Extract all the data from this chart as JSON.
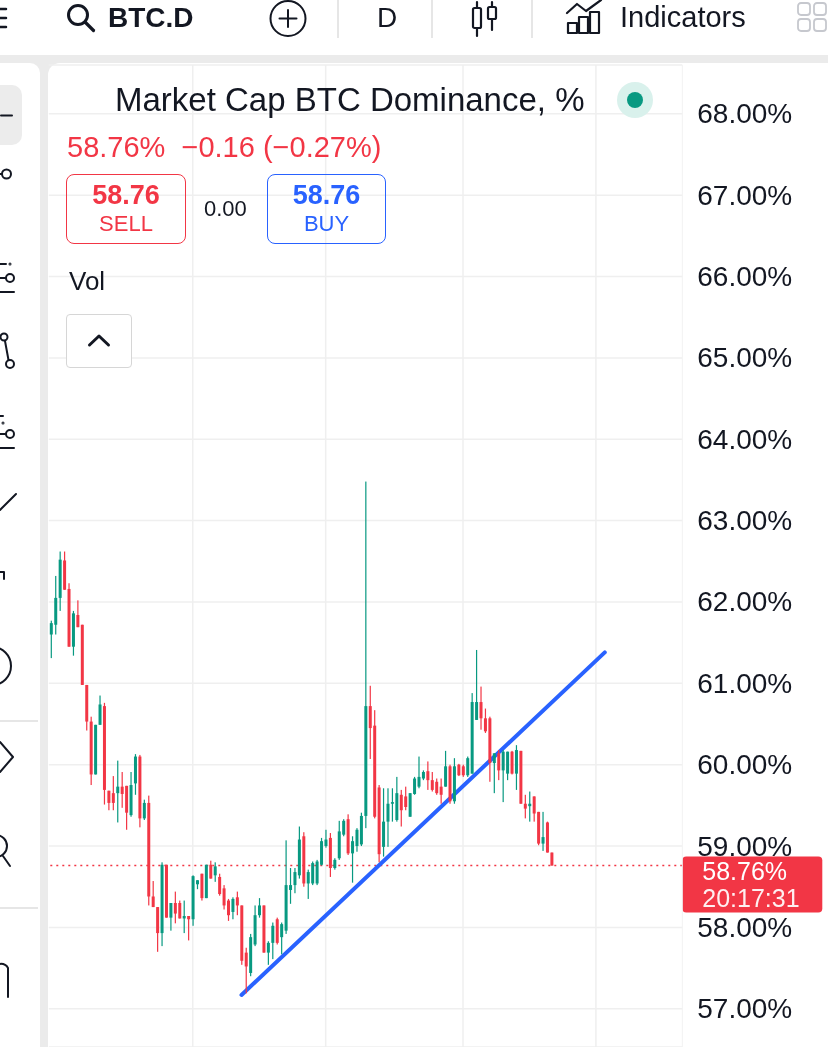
{
  "chart_data": {
    "type": "candlestick",
    "title": "Market Cap BTC Dominance, %",
    "subtitle": "58.76%  −0.16 (−0.27%)",
    "annotations": [
      "BTC.D",
      "D",
      "Indicators",
      "58.76",
      "SELL",
      "0.00",
      "58.76",
      "BUY",
      "Vol",
      "20:17:31"
    ],
    "categories": [
      null,
      null,
      null,
      null,
      null,
      null,
      null,
      null,
      null,
      null,
      null,
      null,
      null,
      null,
      null,
      null,
      null,
      null,
      null,
      null,
      null,
      null,
      null,
      null,
      null,
      null,
      null,
      null,
      null,
      null,
      null,
      null,
      null,
      null,
      null,
      null,
      null,
      null,
      null,
      null,
      null,
      null,
      null,
      null,
      null,
      null,
      null,
      null,
      null,
      null,
      null,
      null,
      null,
      null,
      null,
      null,
      null,
      null,
      null,
      null,
      null,
      null,
      null,
      null,
      null,
      null,
      null,
      null,
      null,
      null,
      null,
      null,
      null,
      null,
      null,
      null,
      null,
      null,
      null,
      null,
      null,
      null,
      null,
      null,
      null,
      null,
      null,
      null,
      null,
      null,
      null,
      null,
      null,
      null,
      null,
      null,
      null,
      null,
      null,
      null,
      null,
      null,
      null,
      null,
      null,
      null,
      null,
      null,
      null,
      null,
      null,
      null,
      null,
      null,
      null,
      null,
      null,
      null,
      null,
      null,
      null,
      null,
      null,
      null,
      null,
      null,
      null,
      null,
      null,
      null,
      null,
      null,
      null,
      null,
      null,
      null,
      null,
      null,
      null,
      null,
      null,
      null,
      null
    ],
    "series": [
      {
        "type": "candlestick",
        "ohlc": [
          [
            61.6,
            61.77,
            61.31,
            61.74
          ],
          [
            61.72,
            62.32,
            61.6,
            62.05
          ],
          [
            62.05,
            62.62,
            61.89,
            62.52
          ],
          [
            62.51,
            62.62,
            62.15,
            62.15
          ],
          [
            62.16,
            62.23,
            61.45,
            61.45
          ],
          [
            61.45,
            61.89,
            61.34,
            61.86
          ],
          [
            61.84,
            62.02,
            61.69,
            61.69
          ],
          [
            61.72,
            61.72,
            60.98,
            60.98
          ],
          [
            60.98,
            60.98,
            60.42,
            60.53
          ],
          [
            60.53,
            60.59,
            59.75,
            59.88
          ],
          [
            59.88,
            60.49,
            59.88,
            60.49
          ],
          [
            60.49,
            60.85,
            60.49,
            60.74
          ],
          [
            60.72,
            60.76,
            59.51,
            59.69
          ],
          [
            59.68,
            59.68,
            59.44,
            59.53
          ],
          [
            59.65,
            59.86,
            59.44,
            59.53
          ],
          [
            59.65,
            60.05,
            59.29,
            59.73
          ],
          [
            59.73,
            59.91,
            59.47,
            59.64
          ],
          [
            59.74,
            59.74,
            59.2,
            59.41
          ],
          [
            59.38,
            59.91,
            59.36,
            59.75
          ],
          [
            59.77,
            60.13,
            59.63,
            60.1
          ],
          [
            60.1,
            60.12,
            59.23,
            59.34
          ],
          [
            59.34,
            59.57,
            59.32,
            59.53
          ],
          [
            59.53,
            59.62,
            58.27,
            58.38
          ],
          [
            58.38,
            58.57,
            58.25,
            58.25
          ],
          [
            58.25,
            58.25,
            57.7,
            57.93
          ],
          [
            57.93,
            58.8,
            57.77,
            58.77
          ],
          [
            58.77,
            58.77,
            58.12,
            58.12
          ],
          [
            58.12,
            58.3,
            57.96,
            58.3
          ],
          [
            58.3,
            58.44,
            58.05,
            58.17
          ],
          [
            58.3,
            58.33,
            58.11,
            58.11
          ],
          [
            58.11,
            58.33,
            57.93,
            58.14
          ],
          [
            58.14,
            58.14,
            57.84,
            58.1
          ],
          [
            58.1,
            58.64,
            58.02,
            58.63
          ],
          [
            58.53,
            58.58,
            58.47,
            58.58
          ],
          [
            58.66,
            58.66,
            58.33,
            58.36
          ],
          [
            58.36,
            58.77,
            58.36,
            58.77
          ],
          [
            58.77,
            58.82,
            58.6,
            58.6
          ],
          [
            58.64,
            58.8,
            58.56,
            58.75
          ],
          [
            58.62,
            58.66,
            58.39,
            58.41
          ],
          [
            58.48,
            58.52,
            58.22,
            58.27
          ],
          [
            58.33,
            58.35,
            58.08,
            58.15
          ],
          [
            58.19,
            58.37,
            58.1,
            58.35
          ],
          [
            58.37,
            58.44,
            58.15,
            58.27
          ],
          [
            58.27,
            58.27,
            57.54,
            57.59
          ],
          [
            57.69,
            57.75,
            57.19,
            57.52
          ],
          [
            57.44,
            57.92,
            57.4,
            57.88
          ],
          [
            57.79,
            58.27,
            57.77,
            58.15
          ],
          [
            58.15,
            58.36,
            58.12,
            58.27
          ],
          [
            58.27,
            58.27,
            57.69,
            57.69
          ],
          [
            57.69,
            57.83,
            57.54,
            57.81
          ],
          [
            57.81,
            58.06,
            57.61,
            58.02
          ],
          [
            58.1,
            58.12,
            57.79,
            57.81
          ],
          [
            57.88,
            58.06,
            57.67,
            58.04
          ],
          [
            57.96,
            59.07,
            57.92,
            58.52
          ],
          [
            58.46,
            58.73,
            58.29,
            58.52
          ],
          [
            58.52,
            58.73,
            58.42,
            58.68
          ],
          [
            58.64,
            59.24,
            58.6,
            59.08
          ],
          [
            59.12,
            59.17,
            58.5,
            58.54
          ],
          [
            58.54,
            58.71,
            58.35,
            58.68
          ],
          [
            58.54,
            58.81,
            58.52,
            58.79
          ],
          [
            58.54,
            58.83,
            58.52,
            58.81
          ],
          [
            58.77,
            59.1,
            58.76,
            59.06
          ],
          [
            59.0,
            59.2,
            58.98,
            59.08
          ],
          [
            59.1,
            59.16,
            58.62,
            58.73
          ],
          [
            58.73,
            58.85,
            58.71,
            58.83
          ],
          [
            58.85,
            59.31,
            58.83,
            59.18
          ],
          [
            59.14,
            59.33,
            59.12,
            59.31
          ],
          [
            59.33,
            59.39,
            58.89,
            58.91
          ],
          [
            58.91,
            59.12,
            58.55,
            59.06
          ],
          [
            59.0,
            59.22,
            58.93,
            59.2
          ],
          [
            59.02,
            59.41,
            59.0,
            59.37
          ],
          [
            59.37,
            63.48,
            59.22,
            60.72
          ],
          [
            60.72,
            60.97,
            60.07,
            60.45
          ],
          [
            60.48,
            60.67,
            59.34,
            59.36
          ],
          [
            59.72,
            59.75,
            58.8,
            58.9
          ],
          [
            58.99,
            59.71,
            58.87,
            59.3
          ],
          [
            59.3,
            59.71,
            58.99,
            59.52
          ],
          [
            59.52,
            59.71,
            59.3,
            59.54
          ],
          [
            59.32,
            59.85,
            59.3,
            59.65
          ],
          [
            59.63,
            59.69,
            59.24,
            59.44
          ],
          [
            59.61,
            59.73,
            59.44,
            59.48
          ],
          [
            59.36,
            59.65,
            59.36,
            59.65
          ],
          [
            59.64,
            59.85,
            59.63,
            59.83
          ],
          [
            59.73,
            60.1,
            59.71,
            59.85
          ],
          [
            59.83,
            59.93,
            59.81,
            59.91
          ],
          [
            59.92,
            60.04,
            59.69,
            59.81
          ],
          [
            59.81,
            59.91,
            59.67,
            59.69
          ],
          [
            59.79,
            59.83,
            59.63,
            59.65
          ],
          [
            59.73,
            59.83,
            59.52,
            59.63
          ],
          [
            59.73,
            60.17,
            59.73,
            59.98
          ],
          [
            59.98,
            60.0,
            59.52,
            59.55
          ],
          [
            59.55,
            60.08,
            59.52,
            59.98
          ],
          [
            60.0,
            60.01,
            59.86,
            59.87
          ],
          [
            59.98,
            60.0,
            59.85,
            59.87
          ],
          [
            59.87,
            60.1,
            59.85,
            60.08
          ],
          [
            59.89,
            60.88,
            59.89,
            60.77
          ],
          [
            60.55,
            61.41,
            60.55,
            60.77
          ],
          [
            60.77,
            60.96,
            60.43,
            60.57
          ],
          [
            60.57,
            60.69,
            60.39,
            60.41
          ],
          [
            60.57,
            60.59,
            59.79,
            60.02
          ],
          [
            60.02,
            60.14,
            59.65,
            60.14
          ],
          [
            60.14,
            60.18,
            59.81,
            59.93
          ],
          [
            59.93,
            60.18,
            59.54,
            60.16
          ],
          [
            59.89,
            60.16,
            59.81,
            60.16
          ],
          [
            60.16,
            60.17,
            59.88,
            59.89
          ],
          [
            59.89,
            60.24,
            59.69,
            60.18
          ],
          [
            60.17,
            60.17,
            59.52,
            59.52
          ],
          [
            59.52,
            59.63,
            59.34,
            59.46
          ],
          [
            59.49,
            59.67,
            59.3,
            59.52
          ],
          [
            59.61,
            59.61,
            59.3,
            59.4
          ],
          [
            59.42,
            59.42,
            59.01,
            59.03
          ],
          [
            59.03,
            59.42,
            58.94,
            59.11
          ],
          [
            59.29,
            59.3,
            58.92,
            58.92
          ],
          [
            58.92,
            58.92,
            58.76,
            58.76
          ],
          null,
          null,
          null,
          null,
          null,
          null,
          null,
          null,
          null,
          null,
          null,
          null,
          null,
          null,
          null,
          null,
          null,
          null,
          null,
          null,
          null,
          null,
          null,
          null,
          null,
          null,
          null,
          null,
          null
        ],
        "colors": [
          "#089981",
          "#089981",
          "#089981",
          "#f23645",
          "#f23645",
          "#089981",
          "#f23645",
          "#f23645",
          "#f23645",
          "#f23645",
          "#089981",
          "#089981",
          "#f23645",
          "#f23645",
          "#f23645",
          "#089981",
          "#f23645",
          "#f23645",
          "#089981",
          "#089981",
          "#f23645",
          "#089981",
          "#f23645",
          "#f23645",
          "#f23645",
          "#089981",
          "#f23645",
          "#089981",
          "#f23645",
          "#f23645",
          "#089981",
          "#f23645",
          "#089981",
          "#089981",
          "#f23645",
          "#089981",
          "#f23645",
          "#089981",
          "#f23645",
          "#f23645",
          "#f23645",
          "#089981",
          "#f23645",
          "#f23645",
          "#f23645",
          "#089981",
          "#089981",
          "#089981",
          "#f23645",
          "#089981",
          "#089981",
          "#f23645",
          "#089981",
          "#089981",
          "#089981",
          "#089981",
          "#089981",
          "#f23645",
          "#089981",
          "#089981",
          "#089981",
          "#089981",
          "#089981",
          "#f23645",
          "#089981",
          "#089981",
          "#089981",
          "#f23645",
          "#089981",
          "#089981",
          "#089981",
          "#089981",
          "#f23645",
          "#f23645",
          "#f23645",
          "#089981",
          "#089981",
          "#089981",
          "#089981",
          "#f23645",
          "#f23645",
          "#089981",
          "#089981",
          "#089981",
          "#089981",
          "#f23645",
          "#f23645",
          "#f23645",
          "#f23645",
          "#089981",
          "#f23645",
          "#089981",
          "#f23645",
          "#f23645",
          "#089981",
          "#089981",
          "#089981",
          "#f23645",
          "#f23645",
          "#f23645",
          "#089981",
          "#f23645",
          "#089981",
          "#089981",
          "#f23645",
          "#089981",
          "#f23645",
          "#f23645",
          "#089981",
          "#f23645",
          "#f23645",
          "#089981",
          "#f23645",
          "#f23645",
          null,
          null,
          null,
          null,
          null,
          null,
          null,
          null,
          null,
          null,
          null,
          null,
          null,
          null,
          null,
          null,
          null,
          null,
          null,
          null,
          null,
          null,
          null,
          null,
          null,
          null,
          null,
          null,
          null
        ]
      },
      {
        "type": "line",
        "color": "#2962ff",
        "values": [
          null,
          null,
          null,
          null,
          null,
          null,
          null,
          null,
          null,
          null,
          null,
          null,
          null,
          null,
          null,
          null,
          null,
          null,
          null,
          null,
          null,
          null,
          null,
          null,
          null,
          null,
          null,
          null,
          null,
          null,
          null,
          null,
          null,
          null,
          null,
          null,
          null,
          null,
          null,
          null,
          null,
          null,
          null,
          57.17,
          null,
          null,
          null,
          null,
          null,
          null,
          null,
          null,
          null,
          null,
          null,
          null,
          null,
          null,
          null,
          null,
          null,
          null,
          null,
          null,
          null,
          null,
          null,
          null,
          null,
          null,
          null,
          null,
          null,
          null,
          null,
          null,
          null,
          null,
          null,
          null,
          null,
          null,
          null,
          null,
          null,
          null,
          null,
          null,
          null,
          null,
          null,
          null,
          null,
          null,
          null,
          null,
          null,
          null,
          null,
          null,
          null,
          null,
          null,
          null,
          null,
          null,
          null,
          null,
          null,
          null,
          null,
          null,
          null,
          null,
          null,
          null,
          null,
          null,
          null,
          null,
          null,
          null,
          null,
          null,
          null,
          61.38,
          null,
          null,
          null,
          null,
          null,
          null,
          null,
          null,
          null,
          null,
          null,
          null,
          null,
          null,
          null,
          null,
          null
        ]
      }
    ],
    "ylim": [
      56.53,
      68.6
    ],
    "yticks": [
      {
        "value": 57,
        "label": "57.00%"
      },
      {
        "value": 58,
        "label": "58.00%"
      },
      {
        "value": 59,
        "label": "59.00%"
      },
      {
        "value": 60,
        "label": "60.00%"
      },
      {
        "value": 61,
        "label": "61.00%"
      },
      {
        "value": 62,
        "label": "62.00%"
      },
      {
        "value": 63,
        "label": "63.00%"
      },
      {
        "value": 64,
        "label": "64.00%"
      },
      {
        "value": 65,
        "label": "65.00%"
      },
      {
        "value": 66,
        "label": "66.00%"
      },
      {
        "value": 67,
        "label": "67.00%"
      },
      {
        "value": 68,
        "label": "68.00%"
      }
    ],
    "tick_labels": "y",
    "grid": true,
    "ref_lines": [
      {
        "axis": "y",
        "value": 58.76,
        "label": "58.76%",
        "color": "#f23645",
        "line_style": "dotted"
      }
    ]
  }
}
